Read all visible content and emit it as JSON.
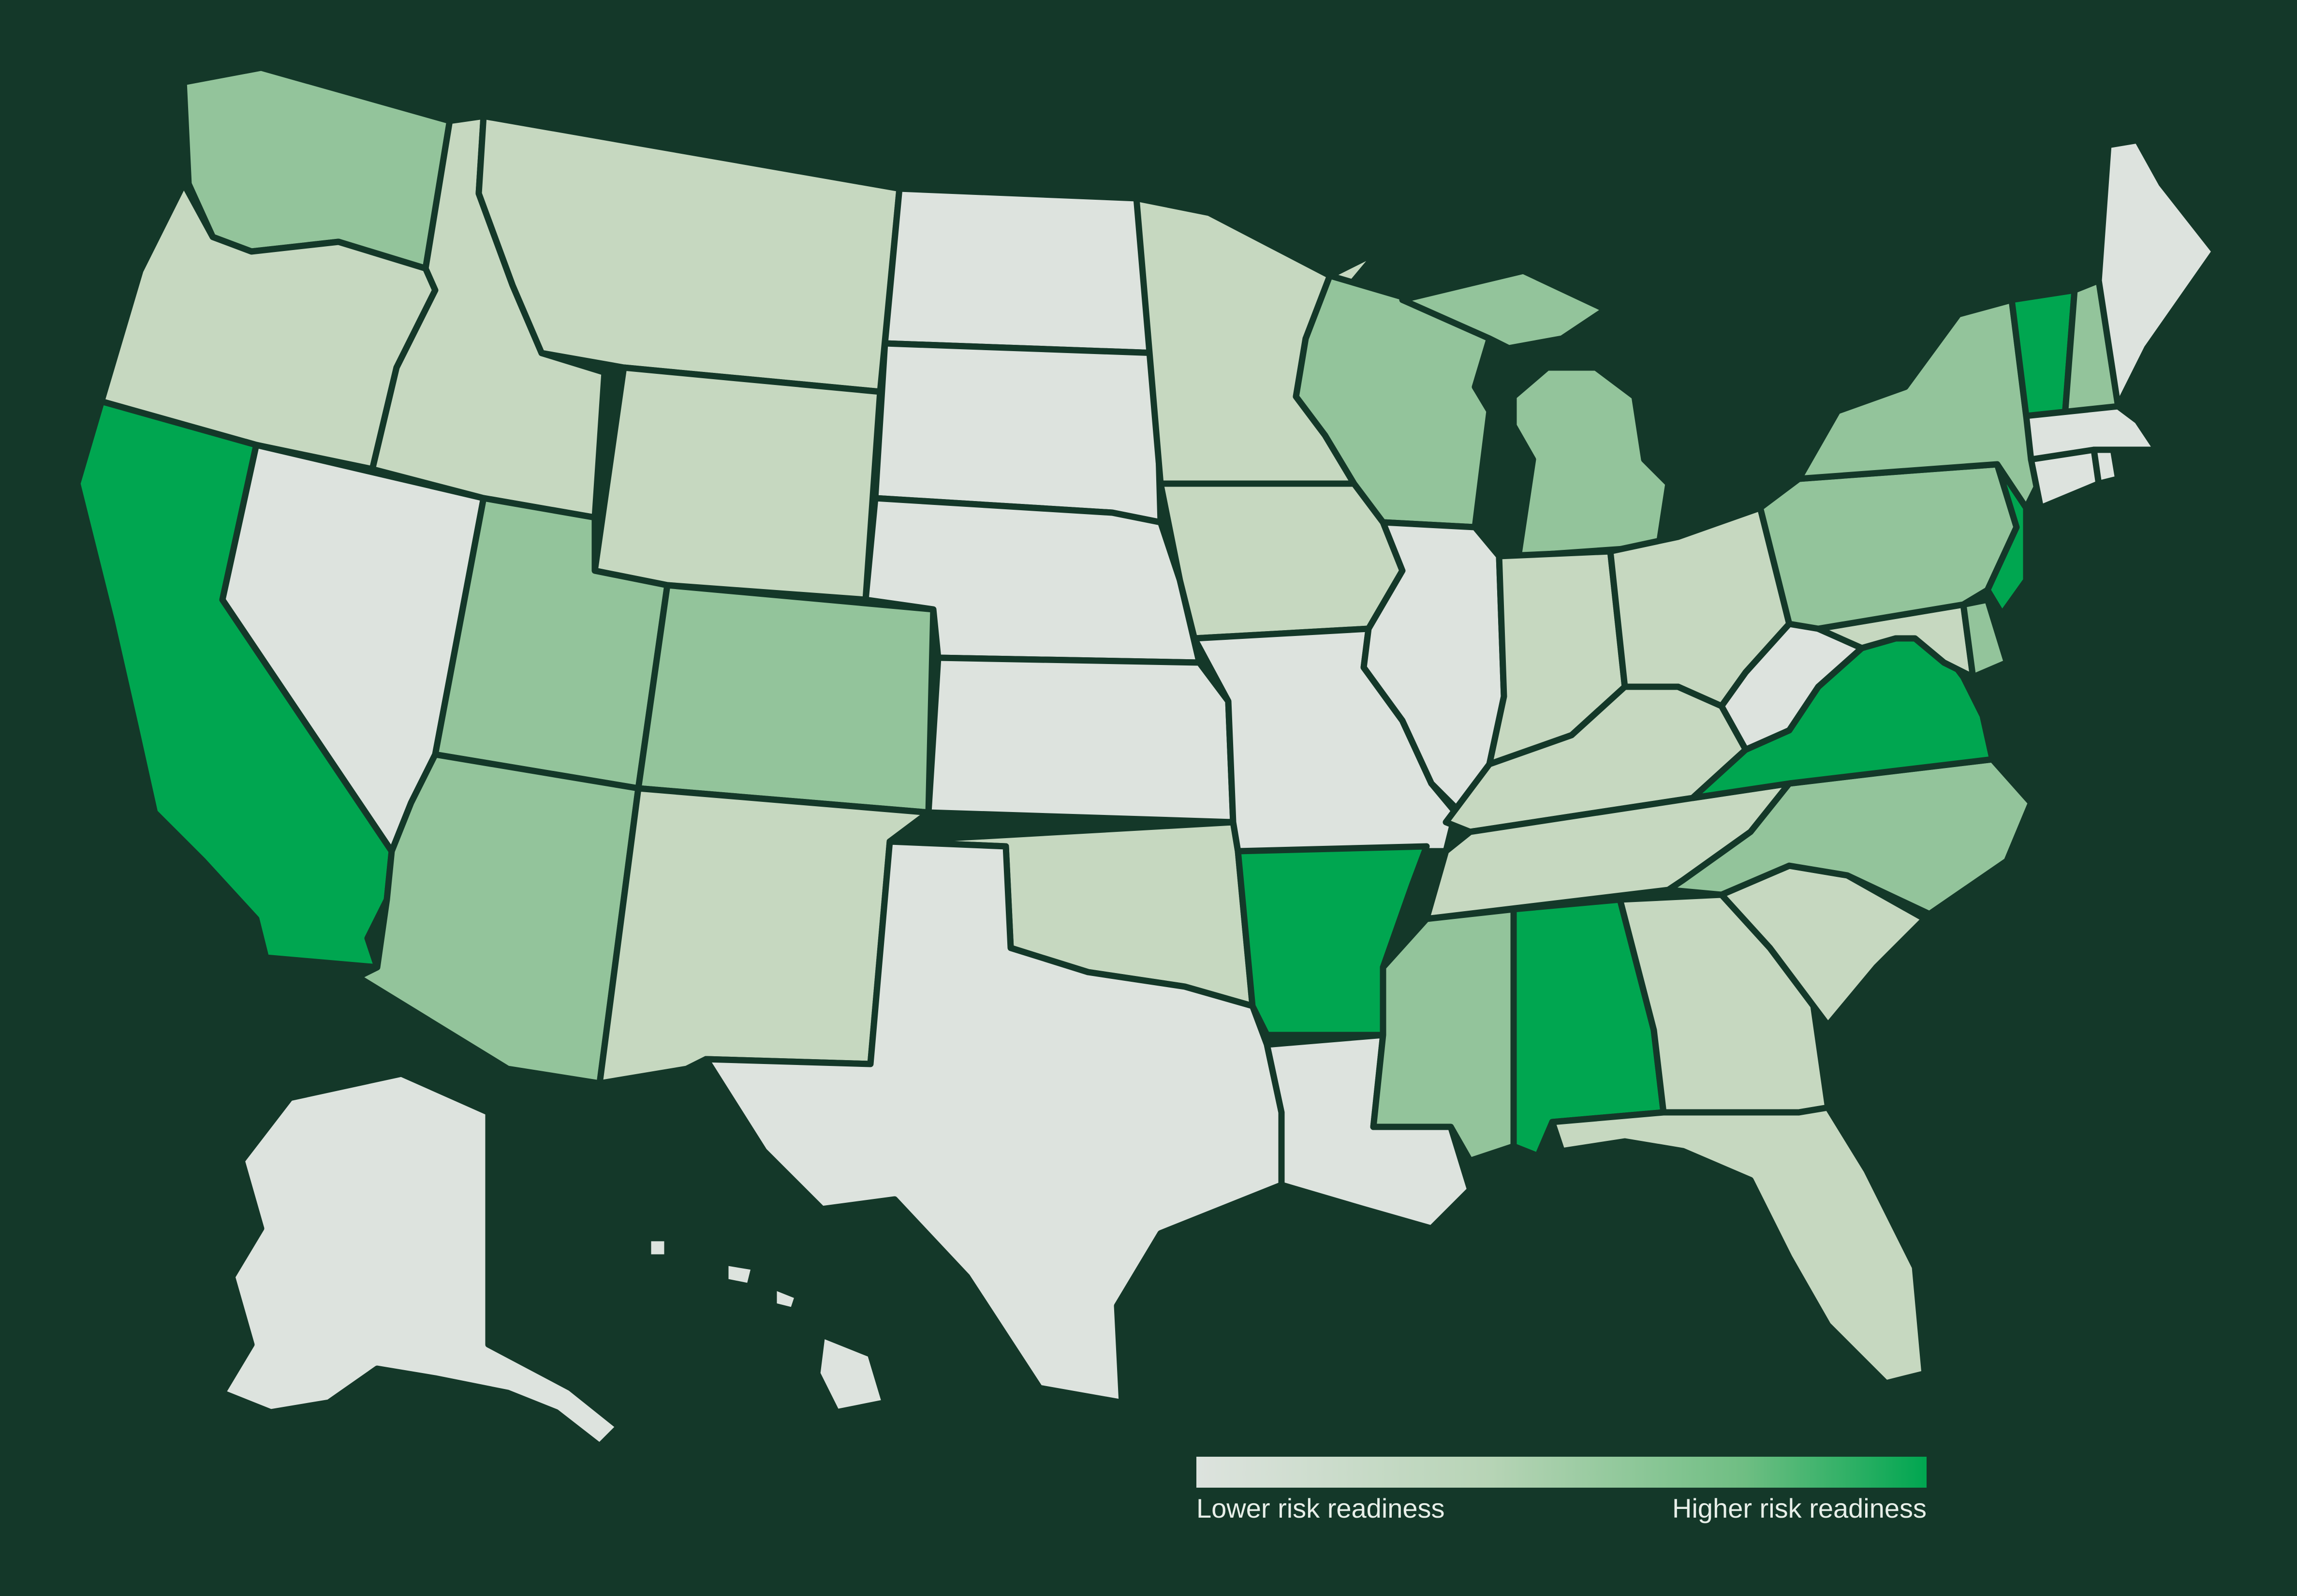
{
  "map": {
    "colors": {
      "background": "#143829",
      "lowest": "#dde3de",
      "low": "#c6d8c0",
      "medium": "#93c49b",
      "highest": "#00a650",
      "border": "#143829"
    },
    "states": [
      {
        "id": "WA",
        "level": "medium"
      },
      {
        "id": "OR",
        "level": "low"
      },
      {
        "id": "CA",
        "level": "highest"
      },
      {
        "id": "NV",
        "level": "lowest"
      },
      {
        "id": "ID",
        "level": "low"
      },
      {
        "id": "MT",
        "level": "low"
      },
      {
        "id": "WY",
        "level": "low"
      },
      {
        "id": "UT",
        "level": "medium"
      },
      {
        "id": "CO",
        "level": "medium"
      },
      {
        "id": "AZ",
        "level": "medium"
      },
      {
        "id": "NM",
        "level": "low"
      },
      {
        "id": "ND",
        "level": "lowest"
      },
      {
        "id": "SD",
        "level": "lowest"
      },
      {
        "id": "NE",
        "level": "lowest"
      },
      {
        "id": "KS",
        "level": "lowest"
      },
      {
        "id": "OK",
        "level": "low"
      },
      {
        "id": "TX",
        "level": "lowest"
      },
      {
        "id": "MN",
        "level": "low"
      },
      {
        "id": "IA",
        "level": "low"
      },
      {
        "id": "MO",
        "level": "lowest"
      },
      {
        "id": "AR",
        "level": "highest"
      },
      {
        "id": "LA",
        "level": "lowest"
      },
      {
        "id": "WI",
        "level": "medium"
      },
      {
        "id": "MI",
        "level": "medium"
      },
      {
        "id": "IL",
        "level": "lowest"
      },
      {
        "id": "IN",
        "level": "low"
      },
      {
        "id": "OH",
        "level": "low"
      },
      {
        "id": "KY",
        "level": "low"
      },
      {
        "id": "TN",
        "level": "low"
      },
      {
        "id": "MS",
        "level": "medium"
      },
      {
        "id": "AL",
        "level": "highest"
      },
      {
        "id": "GA",
        "level": "low"
      },
      {
        "id": "FL",
        "level": "low"
      },
      {
        "id": "SC",
        "level": "low"
      },
      {
        "id": "NC",
        "level": "medium"
      },
      {
        "id": "VA",
        "level": "highest"
      },
      {
        "id": "WV",
        "level": "lowest"
      },
      {
        "id": "MD",
        "level": "low"
      },
      {
        "id": "DE",
        "level": "medium"
      },
      {
        "id": "PA",
        "level": "medium"
      },
      {
        "id": "NJ",
        "level": "highest"
      },
      {
        "id": "NY",
        "level": "medium"
      },
      {
        "id": "VT",
        "level": "highest"
      },
      {
        "id": "NH",
        "level": "medium"
      },
      {
        "id": "ME",
        "level": "lowest"
      },
      {
        "id": "MA",
        "level": "lowest"
      },
      {
        "id": "CT",
        "level": "lowest"
      },
      {
        "id": "RI",
        "level": "lowest"
      },
      {
        "id": "AK",
        "level": "lowest"
      },
      {
        "id": "HI",
        "level": "lowest"
      }
    ]
  },
  "legend": {
    "low_label": "Lower risk readiness",
    "high_label": "Higher risk readiness"
  }
}
